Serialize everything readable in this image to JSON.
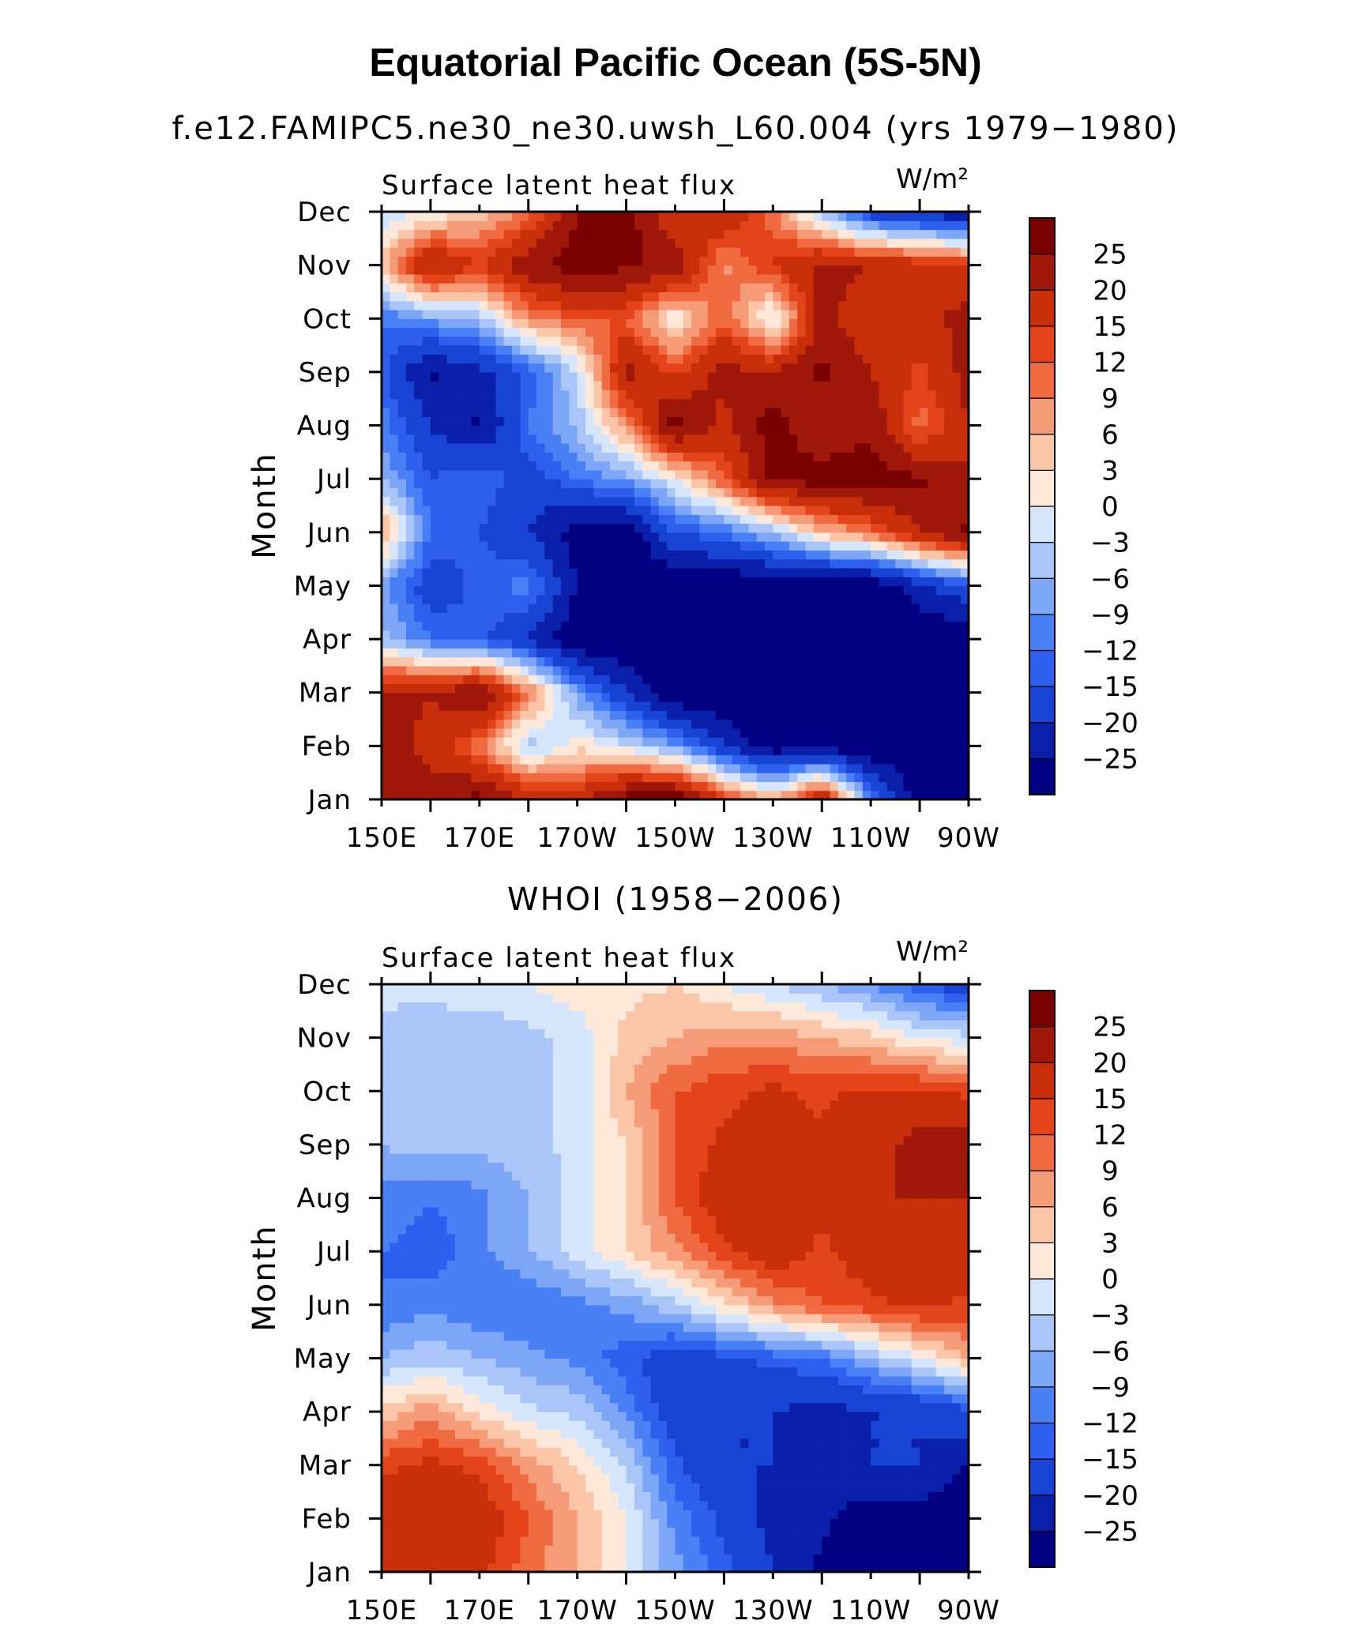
{
  "figure": {
    "title": "Equatorial Pacific Ocean (5S-5N)"
  },
  "colorbar_levels": [
    "25",
    "20",
    "15",
    "12",
    "9",
    "6",
    "3",
    "0",
    "−3",
    "−6",
    "−9",
    "−12",
    "−15",
    "−20",
    "−25"
  ],
  "colors": [
    "#000080",
    "#0a1faa",
    "#1744d4",
    "#2f5fee",
    "#4a80f5",
    "#7ea6f7",
    "#aac6f8",
    "#d5e6fd",
    "#fde8da",
    "#fbc6a8",
    "#f69b78",
    "#f06a42",
    "#e4441a",
    "#c82e0a",
    "#a0180a",
    "#7a0000"
  ],
  "chart_data": [
    {
      "type": "heatmap",
      "title": "f.e12.FAMIPC5.ne30_ne30.uwsh_L60.004 (yrs 1979−1980)",
      "variable": "Surface latent heat flux",
      "units": "W/m²",
      "xlabel": "",
      "ylabel": "Month",
      "x_ticks": [
        "150E",
        "170E",
        "170W",
        "150W",
        "130W",
        "110W",
        "90W"
      ],
      "x": [
        150,
        160,
        170,
        180,
        190,
        200,
        210,
        220,
        230,
        240,
        250,
        260,
        270
      ],
      "y_ticks": [
        "Jan",
        "Feb",
        "Mar",
        "Apr",
        "May",
        "Jun",
        "Jul",
        "Aug",
        "Sep",
        "Oct",
        "Nov",
        "Dec"
      ],
      "z": [
        [
          24,
          22,
          27,
          20,
          18,
          28,
          30,
          15,
          5,
          22,
          -10,
          -28,
          -30
        ],
        [
          24,
          18,
          10,
          -5,
          2,
          -2,
          -8,
          -20,
          -28,
          -28,
          -30,
          -30,
          -30
        ],
        [
          22,
          20,
          26,
          10,
          -8,
          -20,
          -30,
          -30,
          -30,
          -30,
          -30,
          -30,
          -30
        ],
        [
          -5,
          -12,
          -14,
          -20,
          -30,
          -30,
          -30,
          -30,
          -30,
          -30,
          -30,
          -30,
          -30
        ],
        [
          -8,
          -18,
          -14,
          -10,
          -25,
          -30,
          -30,
          -30,
          -30,
          -30,
          -30,
          -22,
          -15
        ],
        [
          8,
          -12,
          -15,
          -20,
          -28,
          -30,
          -15,
          -12,
          -5,
          5,
          10,
          20,
          26
        ],
        [
          -6,
          -15,
          -12,
          -18,
          -12,
          -8,
          0,
          12,
          26,
          28,
          28,
          26,
          20
        ],
        [
          -10,
          -20,
          -26,
          -12,
          -5,
          8,
          28,
          18,
          28,
          20,
          24,
          10,
          20
        ],
        [
          -14,
          -26,
          -22,
          -14,
          -3,
          22,
          14,
          22,
          20,
          26,
          20,
          14,
          22
        ],
        [
          -12,
          -8,
          -5,
          8,
          12,
          12,
          0,
          12,
          -2,
          22,
          16,
          18,
          22
        ],
        [
          5,
          22,
          15,
          24,
          28,
          26,
          24,
          8,
          15,
          22,
          20,
          18,
          16
        ],
        [
          -3,
          0,
          4,
          10,
          25,
          28,
          15,
          20,
          10,
          -5,
          -18,
          -22,
          -25
        ]
      ]
    },
    {
      "type": "heatmap",
      "title": "WHOI (1958−2006)",
      "variable": "Surface latent heat flux",
      "units": "W/m²",
      "xlabel": "",
      "ylabel": "Month",
      "x_ticks": [
        "150E",
        "170E",
        "170W",
        "150W",
        "130W",
        "110W",
        "90W"
      ],
      "x": [
        150,
        160,
        170,
        180,
        190,
        200,
        210,
        220,
        230,
        240,
        250,
        260,
        270
      ],
      "y_ticks": [
        "Jan",
        "Feb",
        "Mar",
        "Apr",
        "May",
        "Jun",
        "Jul",
        "Aug",
        "Sep",
        "Oct",
        "Nov",
        "Dec"
      ],
      "z": [
        [
          16,
          18,
          16,
          10,
          6,
          0,
          -8,
          -14,
          -20,
          -26,
          -28,
          -28,
          -30
        ],
        [
          18,
          20,
          18,
          12,
          6,
          0,
          -10,
          -16,
          -22,
          -24,
          -28,
          -28,
          -30
        ],
        [
          14,
          16,
          14,
          8,
          3,
          -3,
          -14,
          -20,
          -20,
          -24,
          -20,
          -20,
          -25
        ],
        [
          4,
          8,
          2,
          -2,
          -4,
          -10,
          -18,
          -20,
          -20,
          -22,
          -20,
          -20,
          -16
        ],
        [
          -6,
          -4,
          -6,
          -8,
          -10,
          -14,
          -18,
          -16,
          -14,
          -12,
          -6,
          0,
          6
        ],
        [
          -12,
          -10,
          -12,
          -12,
          -10,
          -8,
          -4,
          2,
          8,
          12,
          14,
          16,
          14
        ],
        [
          -12,
          -14,
          -10,
          -6,
          -2,
          3,
          8,
          14,
          18,
          14,
          18,
          20,
          18
        ],
        [
          -10,
          -12,
          -10,
          -6,
          -2,
          3,
          12,
          18,
          20,
          16,
          20,
          20,
          20
        ],
        [
          -6,
          -4,
          -5,
          -4,
          -2,
          3,
          12,
          16,
          16,
          16,
          18,
          22,
          24
        ],
        [
          -6,
          -3,
          -6,
          -4,
          -2,
          6,
          12,
          14,
          16,
          14,
          16,
          16,
          14
        ],
        [
          -4,
          -5,
          -6,
          -4,
          -2,
          4,
          6,
          8,
          8,
          6,
          4,
          0,
          -2
        ],
        [
          -2,
          -2,
          0,
          0,
          2,
          2,
          3,
          0,
          -3,
          -6,
          -9,
          -14,
          -18
        ]
      ]
    }
  ]
}
